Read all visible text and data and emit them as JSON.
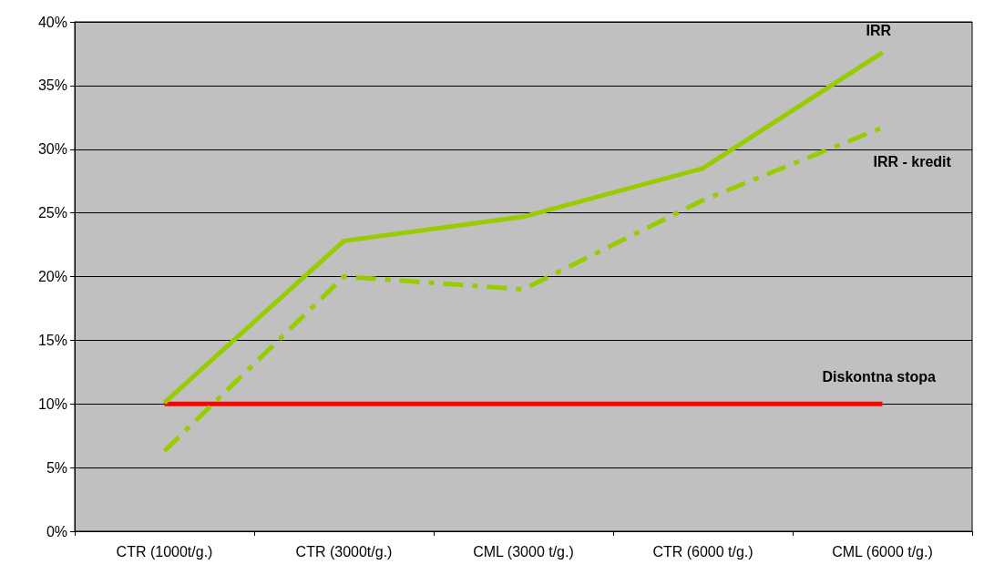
{
  "chart_data": {
    "type": "line",
    "categories": [
      "CTR (1000t/g.)",
      "CTR (3000t/g.)",
      "CML (3000 t/g.)",
      "CTR (6000 t/g.)",
      "CML (6000 t/g.)"
    ],
    "series": [
      {
        "name": "IRR",
        "color": "#99cc00",
        "line_style": "solid",
        "values": [
          10.1,
          22.8,
          24.7,
          28.5,
          37.6
        ]
      },
      {
        "name": "IRR - kredit",
        "color": "#99cc00",
        "line_style": "dashed",
        "values": [
          6.3,
          20.0,
          19.0,
          26.0,
          31.7
        ]
      },
      {
        "name": "Diskontna stopa",
        "color": "#ff0000",
        "line_style": "solid",
        "values": [
          10,
          10,
          10,
          10,
          10
        ]
      }
    ],
    "ylim": [
      0,
      40
    ],
    "yticks": [
      {
        "value": 0,
        "label": "0%"
      },
      {
        "value": 5,
        "label": "5%"
      },
      {
        "value": 10,
        "label": "10%"
      },
      {
        "value": 15,
        "label": "15%"
      },
      {
        "value": 20,
        "label": "20%"
      },
      {
        "value": 25,
        "label": "25%"
      },
      {
        "value": 30,
        "label": "30%"
      },
      {
        "value": 35,
        "label": "35%"
      },
      {
        "value": 40,
        "label": "40%"
      }
    ],
    "grid": "y",
    "legend": false,
    "marker": "none"
  }
}
